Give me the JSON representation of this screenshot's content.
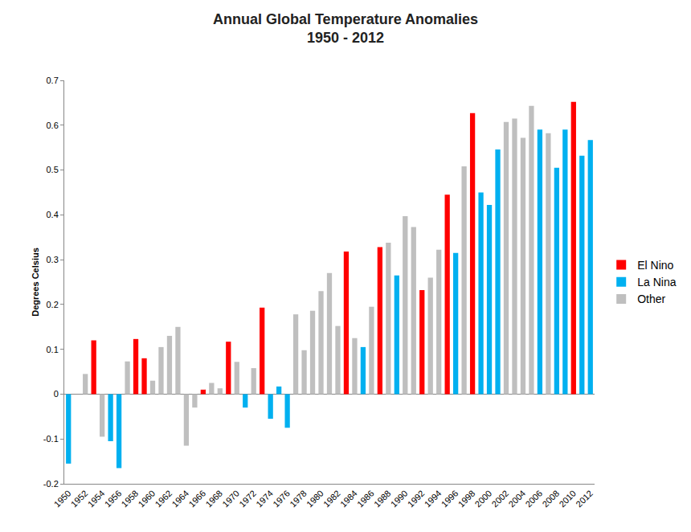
{
  "chart_data": {
    "type": "bar",
    "title": "Annual Global Temperature Anomalies",
    "subtitle": "1950 - 2012",
    "y_label": "Degrees Celsius",
    "x": [
      1950,
      1951,
      1952,
      1953,
      1954,
      1955,
      1956,
      1957,
      1958,
      1959,
      1960,
      1961,
      1962,
      1963,
      1964,
      1965,
      1966,
      1967,
      1968,
      1969,
      1970,
      1971,
      1972,
      1973,
      1974,
      1975,
      1976,
      1977,
      1978,
      1979,
      1980,
      1981,
      1982,
      1983,
      1984,
      1985,
      1986,
      1987,
      1988,
      1989,
      1990,
      1991,
      1992,
      1993,
      1994,
      1995,
      1996,
      1997,
      1998,
      1999,
      2000,
      2001,
      2002,
      2003,
      2004,
      2005,
      2006,
      2007,
      2008,
      2009,
      2010,
      2011,
      2012
    ],
    "series": [
      {
        "name": "El Nino",
        "color": "#ff0000",
        "values": [
          null,
          null,
          null,
          0.12,
          null,
          null,
          null,
          null,
          0.123,
          0.08,
          null,
          null,
          null,
          null,
          null,
          null,
          0.01,
          null,
          null,
          0.117,
          null,
          null,
          null,
          0.193,
          null,
          null,
          null,
          null,
          null,
          null,
          null,
          null,
          null,
          0.318,
          null,
          null,
          null,
          0.328,
          null,
          null,
          null,
          null,
          0.232,
          null,
          null,
          0.445,
          null,
          null,
          0.627,
          null,
          null,
          null,
          null,
          null,
          null,
          null,
          null,
          null,
          null,
          null,
          0.652,
          null,
          null
        ]
      },
      {
        "name": "La Nina",
        "color": "#00b0f0",
        "values": [
          -0.155,
          null,
          null,
          null,
          null,
          -0.105,
          -0.165,
          null,
          null,
          null,
          null,
          null,
          null,
          null,
          null,
          null,
          null,
          null,
          null,
          null,
          null,
          -0.03,
          null,
          null,
          -0.055,
          0.017,
          -0.075,
          null,
          null,
          null,
          null,
          null,
          null,
          null,
          null,
          0.105,
          null,
          null,
          null,
          0.265,
          null,
          null,
          null,
          null,
          null,
          null,
          0.315,
          null,
          null,
          0.45,
          0.422,
          0.546,
          null,
          null,
          null,
          null,
          0.59,
          null,
          0.505,
          0.59,
          null,
          0.532,
          0.567
        ]
      },
      {
        "name": "Other",
        "color": "#bfbfbf",
        "values": [
          null,
          0.0,
          0.045,
          null,
          -0.095,
          null,
          null,
          0.073,
          null,
          null,
          0.03,
          0.105,
          0.13,
          0.15,
          -0.115,
          -0.03,
          null,
          0.025,
          0.013,
          null,
          0.072,
          null,
          0.058,
          null,
          null,
          null,
          null,
          0.178,
          0.098,
          0.186,
          0.23,
          0.27,
          0.152,
          null,
          0.125,
          null,
          0.195,
          null,
          0.338,
          null,
          0.397,
          0.373,
          null,
          0.26,
          0.322,
          null,
          null,
          0.508,
          null,
          null,
          null,
          null,
          0.607,
          0.615,
          0.572,
          0.643,
          null,
          0.582,
          null,
          null,
          null,
          null,
          null
        ]
      }
    ],
    "xlim": [
      1949.5,
      2012.5
    ],
    "xticks": [
      1950,
      1952,
      1954,
      1956,
      1958,
      1960,
      1962,
      1964,
      1966,
      1968,
      1970,
      1972,
      1974,
      1976,
      1978,
      1980,
      1982,
      1984,
      1986,
      1988,
      1990,
      1992,
      1994,
      1996,
      1998,
      2000,
      2002,
      2004,
      2006,
      2008,
      2010,
      2012
    ],
    "ylim": [
      -0.2,
      0.7
    ],
    "yticks": [
      -0.2,
      -0.1,
      0,
      0.1,
      0.2,
      0.3,
      0.4,
      0.5,
      0.6,
      0.7
    ],
    "grid": false,
    "legend": "right"
  }
}
